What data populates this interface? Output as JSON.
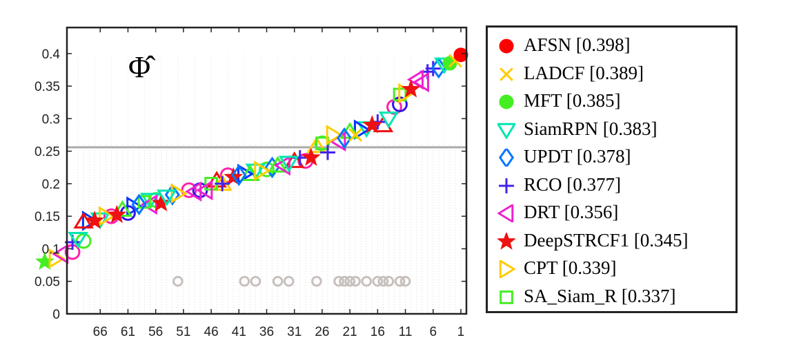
{
  "chart_data": {
    "type": "scatter",
    "title": "",
    "annotation": "Φ̂",
    "xlabel": "",
    "ylabel": "",
    "xlim": [
      72,
      0
    ],
    "ylim": [
      0,
      0.44
    ],
    "x_ticks": [
      66,
      61,
      56,
      51,
      46,
      41,
      36,
      31,
      26,
      21,
      16,
      11,
      6,
      1
    ],
    "y_ticks": [
      0,
      0.05,
      0.1,
      0.15,
      0.2,
      0.25,
      0.3,
      0.35,
      0.4
    ],
    "y_tick_labels": [
      "0",
      "0.05",
      "0.1",
      "0.15",
      "0.2",
      "0.25",
      "0.3",
      "0.35",
      "0.4"
    ],
    "hline": 0.256,
    "grid": "vertical-dotted",
    "legend_position": "right-outside",
    "series": [
      {
        "name": "AFSN [0.398]",
        "marker": "circle-filled",
        "color": "#ff0000",
        "x": [
          1
        ],
        "y": [
          0.398
        ]
      },
      {
        "name": "LADCF [0.389]",
        "marker": "x",
        "color": "#ffcc00",
        "x": [
          2,
          20
        ],
        "y": [
          0.389,
          0.275
        ]
      },
      {
        "name": "MFT [0.385]",
        "marker": "circle-filled",
        "color": "#44ee22",
        "x": [
          3
        ],
        "y": [
          0.385
        ]
      },
      {
        "name": "SiamRPN [0.383]",
        "marker": "triangle-down",
        "color": "#00e6b0",
        "x": [
          4,
          14,
          32,
          54,
          70
        ],
        "y": [
          0.383,
          0.3,
          0.232,
          0.18,
          0.115
        ]
      },
      {
        "name": "UPDT [0.378]",
        "marker": "diamond",
        "color": "#0077ff",
        "x": [
          5,
          22,
          41,
          59
        ],
        "y": [
          0.378,
          0.27,
          0.213,
          0.168
        ]
      },
      {
        "name": "RCO [0.377]",
        "marker": "plus",
        "color": "#4422ee",
        "x": [
          6,
          25,
          44,
          71
        ],
        "y": [
          0.377,
          0.248,
          0.2,
          0.11
        ]
      },
      {
        "name": "DRT [0.356]",
        "marker": "triangle-left",
        "color": "#ee22cc",
        "x": [
          8,
          33,
          47,
          73
        ],
        "y": [
          0.356,
          0.228,
          0.19,
          0.092
        ]
      },
      {
        "name": "DeepSTRCF1 [0.345]",
        "marker": "star",
        "color": "#ee1111",
        "x": [
          10,
          17,
          28,
          42,
          55,
          63,
          67
        ],
        "y": [
          0.345,
          0.29,
          0.24,
          0.21,
          0.17,
          0.152,
          0.143
        ]
      },
      {
        "name": "CPT [0.339]",
        "marker": "triangle-right",
        "color": "#ffcc00",
        "x": [
          11,
          24,
          37,
          52,
          65,
          74
        ],
        "y": [
          0.339,
          0.275,
          0.22,
          0.185,
          0.15,
          0.085
        ]
      },
      {
        "name": "SA_Siam_R [0.337]",
        "marker": "square",
        "color": "#44ee22",
        "x": [
          12,
          26,
          46,
          58
        ],
        "y": [
          0.337,
          0.262,
          0.2,
          0.172
        ]
      }
    ],
    "other_markers": [
      {
        "marker": "circle",
        "color": "#ff22aa",
        "x": [
          13,
          29,
          43,
          50,
          64,
          71
        ],
        "y": [
          0.318,
          0.235,
          0.213,
          0.19,
          0.15,
          0.095
        ]
      },
      {
        "marker": "circle",
        "color": "#3311ee",
        "x": [
          12,
          48,
          61
        ],
        "y": [
          0.322,
          0.19,
          0.155
        ]
      },
      {
        "marker": "circle",
        "color": "#44ee22",
        "x": [
          26,
          36,
          56,
          69
        ],
        "y": [
          0.262,
          0.222,
          0.175,
          0.112
        ]
      },
      {
        "marker": "triangle-down",
        "color": "#00e6b0",
        "x": [
          18,
          38,
          57,
          66
        ],
        "y": [
          0.285,
          0.22,
          0.175,
          0.145
        ]
      },
      {
        "marker": "diamond",
        "color": "#0077ff",
        "x": [
          35,
          53
        ],
        "y": [
          0.225,
          0.183
        ]
      },
      {
        "marker": "triangle-right",
        "color": "#0033ff",
        "x": [
          19,
          40,
          60,
          68
        ],
        "y": [
          0.283,
          0.215,
          0.165,
          0.143
        ]
      },
      {
        "marker": "star",
        "color": "#44ee22",
        "x": [
          76
        ],
        "y": [
          0.08
        ]
      },
      {
        "marker": "triangle-up",
        "color": "#ee1111",
        "x": [
          15,
          31,
          45,
          69
        ],
        "y": [
          0.29,
          0.235,
          0.205,
          0.142
        ]
      },
      {
        "marker": "triangle-up",
        "color": "#44ee22",
        "x": [
          21,
          34,
          39,
          62
        ],
        "y": [
          0.28,
          0.228,
          0.215,
          0.16
        ]
      },
      {
        "marker": "triangle-left",
        "color": "#ee22cc",
        "x": [
          23,
          49,
          57
        ],
        "y": [
          0.265,
          0.188,
          0.168
        ]
      },
      {
        "marker": "triangle-up",
        "color": "#ffcc00",
        "x": [
          27,
          44
        ],
        "y": [
          0.258,
          0.2
        ]
      },
      {
        "marker": "plus",
        "color": "#4422ee",
        "x": [
          7,
          16,
          30
        ],
        "y": [
          0.372,
          0.295,
          0.24
        ]
      },
      {
        "marker": "triangle-left",
        "color": "#ee22cc",
        "x": [
          9
        ],
        "y": [
          0.36
        ]
      }
    ],
    "gray_markers": {
      "marker": "circle",
      "color": "#c8c0bc",
      "y": 0.05,
      "x": [
        52,
        40,
        38,
        34,
        32,
        27,
        23,
        22,
        21,
        20,
        18,
        16,
        15,
        14,
        12,
        11
      ]
    }
  },
  "legend": {
    "items": [
      {
        "label": "AFSN [0.398]",
        "marker": "circle-filled",
        "color": "#ff0000"
      },
      {
        "label": "LADCF [0.389]",
        "marker": "x",
        "color": "#ffcc00"
      },
      {
        "label": "MFT [0.385]",
        "marker": "circle-filled",
        "color": "#44ee22"
      },
      {
        "label": "SiamRPN [0.383]",
        "marker": "triangle-down",
        "color": "#00e6b0"
      },
      {
        "label": "UPDT [0.378]",
        "marker": "diamond",
        "color": "#0077ff"
      },
      {
        "label": "RCO [0.377]",
        "marker": "plus",
        "color": "#4422ee"
      },
      {
        "label": "DRT [0.356]",
        "marker": "triangle-left",
        "color": "#ee22cc"
      },
      {
        "label": "DeepSTRCF1 [0.345]",
        "marker": "star",
        "color": "#ee1111"
      },
      {
        "label": "CPT [0.339]",
        "marker": "triangle-right",
        "color": "#ffcc00"
      },
      {
        "label": "SA_Siam_R [0.337]",
        "marker": "square",
        "color": "#44ee22"
      }
    ]
  }
}
